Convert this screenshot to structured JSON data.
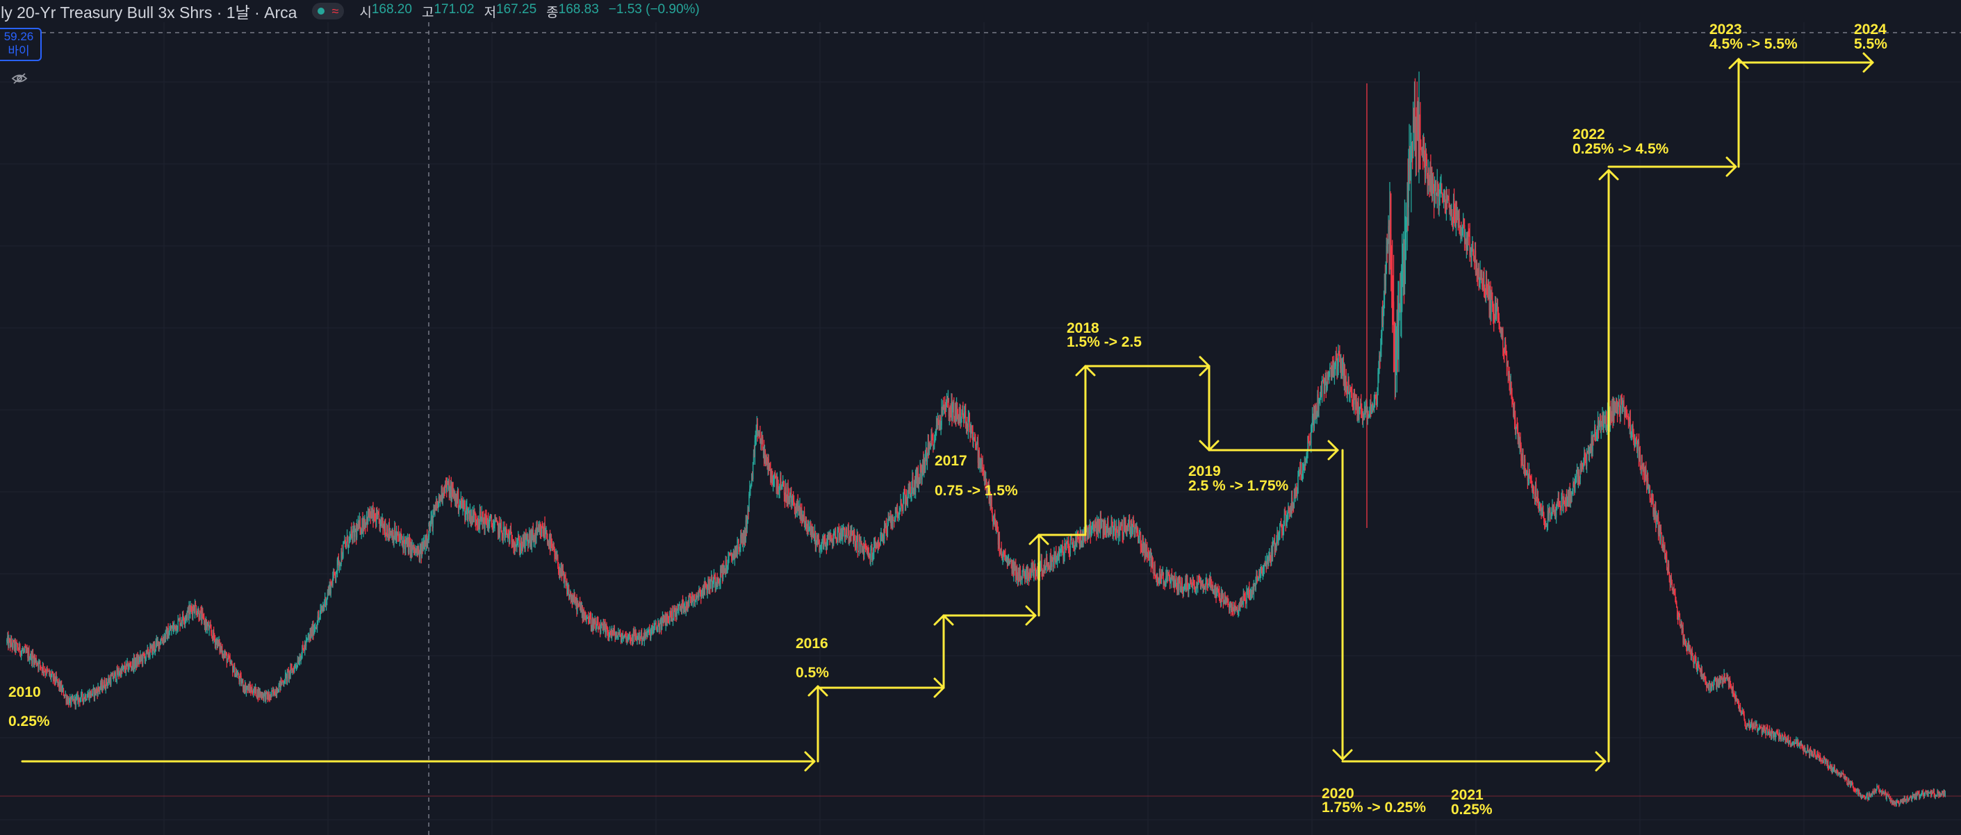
{
  "header": {
    "title": "ily 20-Yr Treasury Bull 3x Shrs · 1날 · Arca",
    "ohlc": [
      {
        "label": "시",
        "value": "168.20"
      },
      {
        "label": "고",
        "value": "171.02"
      },
      {
        "label": "저",
        "value": "167.25"
      },
      {
        "label": "종",
        "value": "168.83"
      }
    ],
    "change": "−1.53 (−0.90%)"
  },
  "price_badge": {
    "price": "59.26",
    "side": "바이"
  },
  "icons": {
    "status": "status-dot-icon",
    "wave": "wave-icon",
    "eye": "eye-off-icon"
  },
  "colors": {
    "background": "#151924",
    "grid": "#1e2230",
    "up": "#26a69a",
    "down": "#f23645",
    "annotation": "#ffeb3b",
    "accent": "#2962ff"
  },
  "chart_data": {
    "type": "candlestick",
    "title": "",
    "xlabel": "",
    "ylabel": "",
    "annotation_years": [
      "2010",
      "2016",
      "2017",
      "2018",
      "2019",
      "2020",
      "2021",
      "2022",
      "2023",
      "2024"
    ],
    "annotations": [
      {
        "id": "2010",
        "lines": [
          "2010",
          "0.25%"
        ]
      },
      {
        "id": "2016",
        "lines": [
          "2016",
          "0.5%"
        ]
      },
      {
        "id": "2017",
        "lines": [
          "2017",
          "0.75 -> 1.5%"
        ]
      },
      {
        "id": "2018",
        "lines": [
          "2018",
          "1.5% -> 2.5"
        ]
      },
      {
        "id": "2019",
        "lines": [
          "2019",
          "2.5 % -> 1.75%"
        ]
      },
      {
        "id": "2020",
        "lines": [
          "2020",
          "1.75% -> 0.25%"
        ]
      },
      {
        "id": "2021",
        "lines": [
          "2021",
          "0.25%"
        ]
      },
      {
        "id": "2022",
        "lines": [
          "2022",
          "0.25% -> 4.5%"
        ]
      },
      {
        "id": "2023",
        "lines": [
          "2023",
          "4.5% -> 5.5%"
        ]
      },
      {
        "id": "2024",
        "lines": [
          "2024",
          "5.5%"
        ]
      }
    ],
    "price_path": [
      [
        2009.0,
        61
      ],
      [
        2009.2,
        58
      ],
      [
        2009.4,
        53
      ],
      [
        2009.5,
        49
      ],
      [
        2009.7,
        51
      ],
      [
        2009.9,
        55
      ],
      [
        2010.1,
        58
      ],
      [
        2010.3,
        63
      ],
      [
        2010.5,
        68
      ],
      [
        2010.7,
        60
      ],
      [
        2010.9,
        52
      ],
      [
        2011.1,
        50
      ],
      [
        2011.3,
        56
      ],
      [
        2011.5,
        66
      ],
      [
        2011.7,
        80
      ],
      [
        2011.9,
        86
      ],
      [
        2012.1,
        82
      ],
      [
        2012.3,
        78
      ],
      [
        2012.5,
        92
      ],
      [
        2012.7,
        86
      ],
      [
        2012.9,
        84
      ],
      [
        2013.1,
        80
      ],
      [
        2013.3,
        83
      ],
      [
        2013.5,
        70
      ],
      [
        2013.7,
        64
      ],
      [
        2013.9,
        62
      ],
      [
        2014.1,
        62
      ],
      [
        2014.3,
        66
      ],
      [
        2014.5,
        70
      ],
      [
        2014.7,
        74
      ],
      [
        2014.9,
        82
      ],
      [
        2015.0,
        103
      ],
      [
        2015.1,
        94
      ],
      [
        2015.3,
        88
      ],
      [
        2015.5,
        80
      ],
      [
        2015.7,
        83
      ],
      [
        2015.9,
        78
      ],
      [
        2016.1,
        86
      ],
      [
        2016.3,
        94
      ],
      [
        2016.5,
        108
      ],
      [
        2016.7,
        104
      ],
      [
        2016.85,
        90
      ],
      [
        2016.95,
        78
      ],
      [
        2017.1,
        74
      ],
      [
        2017.3,
        76
      ],
      [
        2017.5,
        80
      ],
      [
        2017.7,
        84
      ],
      [
        2017.9,
        83
      ],
      [
        2018.0,
        84
      ],
      [
        2018.2,
        74
      ],
      [
        2018.4,
        72
      ],
      [
        2018.6,
        73
      ],
      [
        2018.8,
        67
      ],
      [
        2018.95,
        71
      ],
      [
        2019.1,
        78
      ],
      [
        2019.3,
        90
      ],
      [
        2019.5,
        110
      ],
      [
        2019.65,
        116
      ],
      [
        2019.8,
        106
      ],
      [
        2019.95,
        108
      ],
      [
        2020.05,
        145
      ],
      [
        2020.1,
        115
      ],
      [
        2020.25,
        165
      ],
      [
        2020.4,
        150
      ],
      [
        2020.6,
        145
      ],
      [
        2020.8,
        132
      ],
      [
        2020.95,
        122
      ],
      [
        2021.1,
        98
      ],
      [
        2021.3,
        85
      ],
      [
        2021.5,
        90
      ],
      [
        2021.7,
        102
      ],
      [
        2021.9,
        108
      ],
      [
        2022.05,
        98
      ],
      [
        2022.2,
        84
      ],
      [
        2022.4,
        62
      ],
      [
        2022.6,
        52
      ],
      [
        2022.75,
        54
      ],
      [
        2022.9,
        45
      ],
      [
        2023.1,
        43
      ],
      [
        2023.3,
        41
      ],
      [
        2023.5,
        38
      ],
      [
        2023.7,
        34
      ],
      [
        2023.85,
        30
      ],
      [
        2023.95,
        32
      ],
      [
        2024.1,
        29
      ],
      [
        2024.3,
        31
      ],
      [
        2024.5,
        31
      ]
    ]
  }
}
